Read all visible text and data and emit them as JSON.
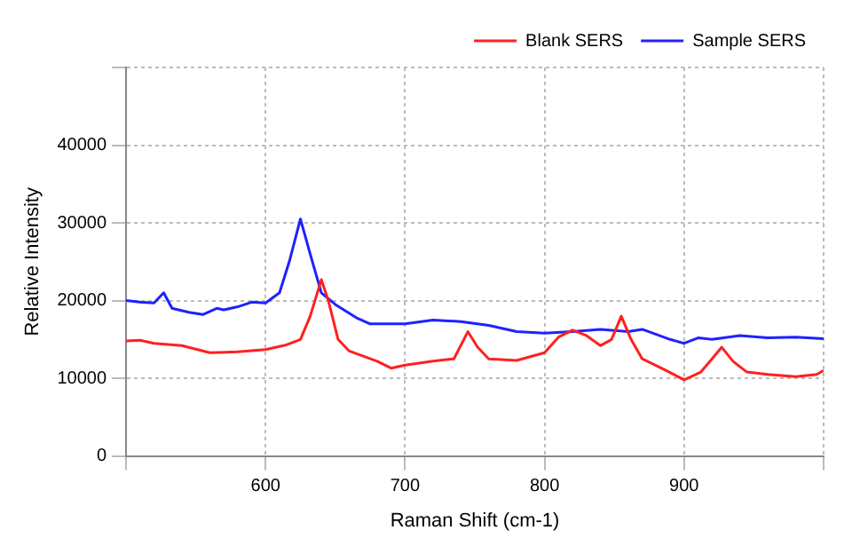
{
  "chart_data": {
    "type": "line",
    "xlabel": "Raman Shift (cm-1)",
    "ylabel": "Relative Intensity",
    "xlim": [
      500,
      1000
    ],
    "xticks": [
      {
        "value": 500,
        "label": null
      },
      600,
      700,
      800,
      900,
      {
        "value": 1000,
        "label": null
      }
    ],
    "ylim": [
      0,
      50000
    ],
    "yticks": [
      0,
      10000,
      20000,
      30000,
      40000,
      {
        "value": 50000,
        "label": null
      }
    ],
    "grid": true,
    "legend": "top right",
    "marker": "none",
    "line_style": "solid",
    "series": [
      {
        "name": "Blank SERS",
        "color": "#ff2020",
        "x": [
          500,
          510,
          520,
          540,
          560,
          580,
          600,
          615,
          625,
          632,
          640,
          645,
          652,
          660,
          680,
          690,
          700,
          720,
          735,
          745,
          752,
          760,
          780,
          800,
          810,
          820,
          830,
          840,
          848,
          855,
          862,
          870,
          885,
          900,
          912,
          920,
          927,
          935,
          945,
          960,
          980,
          995,
          1000
        ],
        "values": [
          14800,
          14900,
          14500,
          14200,
          13300,
          13400,
          13700,
          14300,
          15000,
          18000,
          22700,
          20000,
          15000,
          13500,
          12200,
          11300,
          11700,
          12200,
          12500,
          16000,
          14000,
          12500,
          12300,
          13300,
          15300,
          16200,
          15500,
          14200,
          15000,
          18000,
          15000,
          12500,
          11200,
          9800,
          10800,
          12500,
          14000,
          12200,
          10800,
          10500,
          10200,
          10500,
          11000
        ]
      },
      {
        "name": "Sample SERS",
        "color": "#2020ff",
        "x": [
          500,
          510,
          520,
          527,
          533,
          545,
          555,
          565,
          570,
          580,
          590,
          600,
          610,
          617,
          625,
          632,
          640,
          650,
          665,
          675,
          700,
          720,
          740,
          760,
          780,
          800,
          820,
          840,
          860,
          870,
          890,
          900,
          910,
          920,
          940,
          960,
          980,
          1000
        ],
        "values": [
          20000,
          19800,
          19700,
          21000,
          19000,
          18500,
          18200,
          19000,
          18800,
          19200,
          19800,
          19700,
          21000,
          25000,
          30500,
          26000,
          21000,
          19500,
          17800,
          17000,
          17000,
          17500,
          17300,
          16800,
          16000,
          15800,
          16000,
          16300,
          16000,
          16300,
          15000,
          14500,
          15200,
          15000,
          15500,
          15200,
          15300,
          15100
        ]
      }
    ]
  }
}
